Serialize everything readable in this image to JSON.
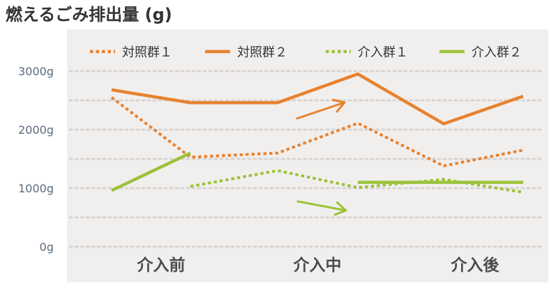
{
  "chart_data": {
    "type": "line",
    "title": "燃えるごみ排出量 (g)",
    "categories": [
      "介入前",
      "",
      "介入中",
      "",
      "介入後",
      ""
    ],
    "yticks": [
      "0g",
      "1000g",
      "2000g",
      "3000g"
    ],
    "ylim": [
      0,
      3000
    ],
    "grid": true,
    "legend_position": "top",
    "series": [
      {
        "name": "対照群１",
        "color": "#E8822E",
        "dash": "dotted",
        "values": [
          2550,
          1530,
          1600,
          2110,
          1380,
          1650
        ]
      },
      {
        "name": "対照群２",
        "color": "#E8822E",
        "dash": "solid",
        "values": [
          2680,
          2460,
          2460,
          2950,
          2100,
          2570
        ]
      },
      {
        "name": "介入群１",
        "color": "#9BC33B",
        "dash": "dotted",
        "values": [
          null,
          1030,
          1300,
          1010,
          1150,
          930
        ]
      },
      {
        "name": "介入群２",
        "color": "#9BC33B",
        "dash": "solid",
        "values": [
          960,
          1600,
          null,
          1100,
          1100,
          1100
        ]
      }
    ],
    "annotations": [
      {
        "type": "arrow",
        "color": "#E8822E",
        "name": "increase-arrow"
      },
      {
        "type": "arrow",
        "color": "#9BC33B",
        "name": "decrease-arrow"
      }
    ]
  },
  "colors": {
    "panel": "#F1EFEE",
    "grid": "#D7D3D0",
    "tick_text": "#5A6A7C",
    "title_text": "#333333",
    "category_text": "#4A4A4A"
  }
}
